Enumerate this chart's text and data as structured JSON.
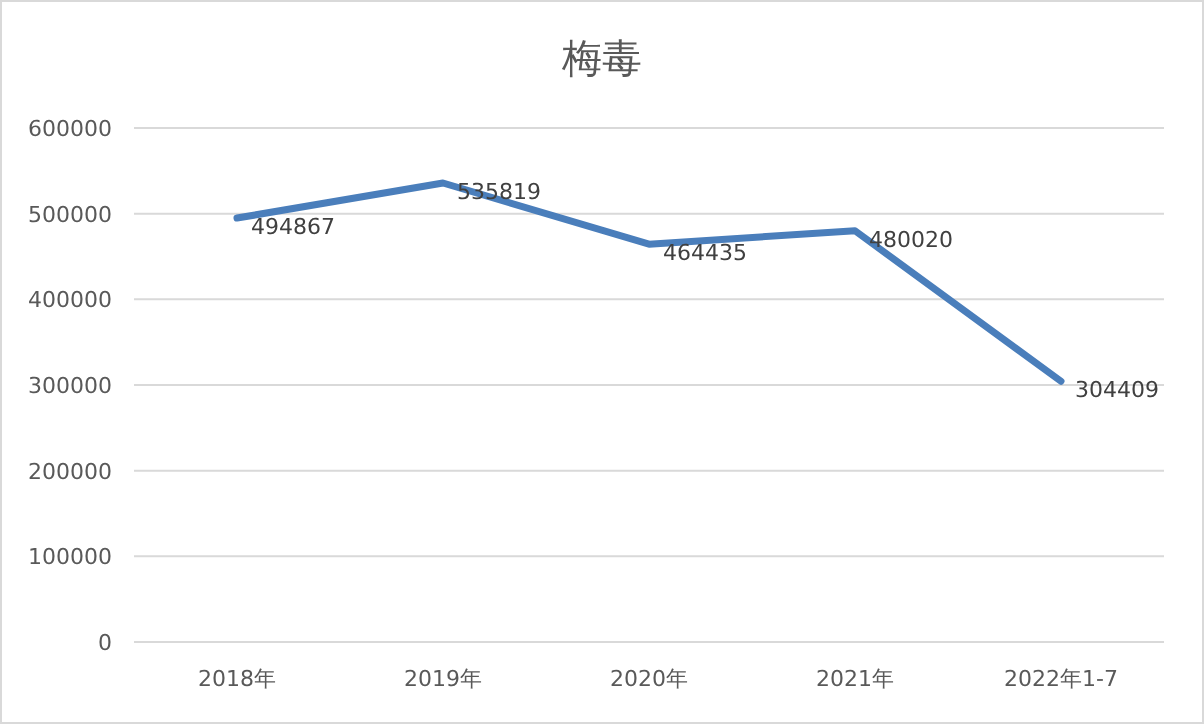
{
  "chart_data": {
    "type": "line",
    "title": "梅毒",
    "categories": [
      "2018年",
      "2019年",
      "2020年",
      "2021年",
      "2022年1-7"
    ],
    "values": [
      494867,
      535819,
      464435,
      480020,
      304409
    ],
    "color": "#4a7ebb",
    "ylim": [
      0,
      600000
    ],
    "yticks": [
      0,
      100000,
      200000,
      300000,
      400000,
      500000,
      600000
    ],
    "grid": "y",
    "data_labels": true
  }
}
